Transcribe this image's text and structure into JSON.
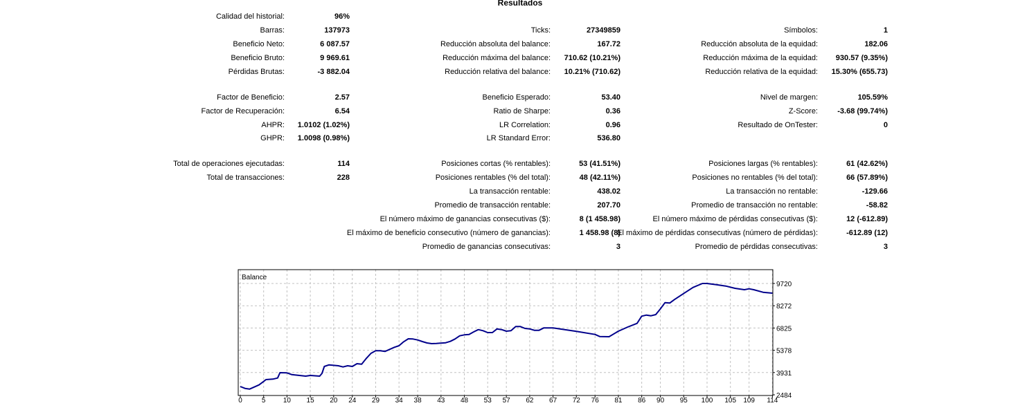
{
  "title": "Resultados",
  "rows": [
    [
      {
        "label": "Calidad del historial:",
        "value": "96%"
      },
      null,
      null
    ],
    [
      {
        "label": "Barras:",
        "value": "137973"
      },
      {
        "label": "Ticks:",
        "value": "27349859"
      },
      {
        "label": "Símbolos:",
        "value": "1"
      }
    ],
    [
      {
        "label": "Beneficio Neto:",
        "value": "6 087.57"
      },
      {
        "label": "Reducción absoluta del balance:",
        "value": "167.72"
      },
      {
        "label": "Reducción absoluta de la equidad:",
        "value": "182.06"
      }
    ],
    [
      {
        "label": "Beneficio Bruto:",
        "value": "9 969.61"
      },
      {
        "label": "Reducción máxima del balance:",
        "value": "710.62 (10.21%)"
      },
      {
        "label": "Reducción máxima de la equidad:",
        "value": "930.57 (9.35%)"
      }
    ],
    [
      {
        "label": "Pérdidas Brutas:",
        "value": "-3 882.04"
      },
      {
        "label": "Reducción relativa del balance:",
        "value": "10.21% (710.62)"
      },
      {
        "label": "Reducción relativa de la equidad:",
        "value": "15.30% (655.73)"
      }
    ],
    [
      {
        "label": "Factor de Beneficio:",
        "value": "2.57"
      },
      {
        "label": "Beneficio Esperado:",
        "value": "53.40"
      },
      {
        "label": "Nivel de margen:",
        "value": "105.59%"
      }
    ],
    [
      {
        "label": "Factor de Recuperación:",
        "value": "6.54"
      },
      {
        "label": "Ratio de Sharpe:",
        "value": "0.36"
      },
      {
        "label": "Z-Score:",
        "value": "-3.68 (99.74%)"
      }
    ],
    [
      {
        "label": "AHPR:",
        "value": "1.0102 (1.02%)"
      },
      {
        "label": "LR Correlation:",
        "value": "0.96"
      },
      {
        "label": "Resultado de OnTester:",
        "value": "0"
      }
    ],
    [
      {
        "label": "GHPR:",
        "value": "1.0098 (0.98%)"
      },
      {
        "label": "LR Standard Error:",
        "value": "536.80"
      },
      null
    ],
    [
      {
        "label": "Total de operaciones ejecutadas:",
        "value": "114"
      },
      {
        "label": "Posiciones cortas (% rentables):",
        "value": "53 (41.51%)"
      },
      {
        "label": "Posiciones largas (% rentables):",
        "value": "61 (42.62%)"
      }
    ],
    [
      {
        "label": "Total de transacciones:",
        "value": "228"
      },
      {
        "label": "Posiciones rentables (% del total):",
        "value": "48 (42.11%)"
      },
      {
        "label": "Posiciones no rentables (% del total):",
        "value": "66 (57.89%)"
      }
    ],
    [
      null,
      {
        "label": "La transacción rentable:",
        "value": "438.02"
      },
      {
        "label": "La transacción no rentable:",
        "value": "-129.66"
      }
    ],
    [
      null,
      {
        "label": "Promedio de transacción rentable:",
        "value": "207.70"
      },
      {
        "label": "Promedio de transacción no rentable:",
        "value": "-58.82"
      }
    ],
    [
      null,
      {
        "label": "El número máximo de ganancias consecutivas ($):",
        "value": "8 (1 458.98)"
      },
      {
        "label": "El número máximo de pérdidas consecutivas ($):",
        "value": "12 (-612.89)"
      }
    ],
    [
      null,
      {
        "label": "El máximo de beneficio consecutivo (número de ganancias):",
        "value": "1 458.98 (8)"
      },
      {
        "label": "El máximo de pérdidas consecutivas (número de pérdidas):",
        "value": "-612.89 (12)"
      }
    ],
    [
      null,
      {
        "label": "Promedio de ganancias consecutivas:",
        "value": "3"
      },
      {
        "label": "Promedio de pérdidas consecutivas:",
        "value": "3"
      }
    ]
  ],
  "chart_data": {
    "type": "line",
    "title": "Balance",
    "xlabel": "",
    "ylabel": "",
    "x_ticks": [
      0,
      5,
      10,
      15,
      20,
      24,
      29,
      34,
      38,
      43,
      48,
      53,
      57,
      62,
      67,
      72,
      76,
      81,
      86,
      90,
      95,
      100,
      105,
      109,
      114
    ],
    "y_ticks": [
      2484,
      3931,
      5378,
      6825,
      8272,
      9720
    ],
    "xlim": [
      0,
      114
    ],
    "ylim": [
      2484,
      10570
    ],
    "grid": true,
    "line_color": "#00008b",
    "series": [
      {
        "name": "Balance",
        "x": [
          0,
          1,
          2,
          4,
          5,
          5.5,
          7,
          8,
          8.5,
          10,
          11,
          13,
          14,
          15,
          17,
          17.5,
          18,
          19,
          21,
          22,
          23,
          24,
          25,
          26,
          27,
          28,
          29,
          30,
          31,
          33,
          34,
          35,
          36,
          37,
          38,
          39,
          40,
          41,
          42,
          44,
          45,
          46,
          47,
          48,
          49,
          50,
          51,
          52,
          53,
          54,
          55,
          56,
          57,
          58,
          59,
          60,
          61,
          62,
          63,
          64,
          65,
          66,
          67,
          72,
          76,
          77,
          79,
          81,
          83,
          85,
          86,
          87,
          88,
          89,
          90,
          91,
          92,
          93,
          95,
          97,
          99,
          100,
          102,
          104,
          106,
          108,
          109,
          110,
          112,
          114
        ],
        "y": [
          3023,
          2904,
          2859,
          3128,
          3353,
          3473,
          3503,
          3578,
          3922,
          3907,
          3802,
          3727,
          3697,
          3742,
          3697,
          3877,
          4327,
          4431,
          4372,
          4297,
          4372,
          4327,
          4506,
          4476,
          4851,
          5180,
          5345,
          5345,
          5300,
          5570,
          5675,
          5930,
          6124,
          6109,
          6049,
          5945,
          5855,
          5810,
          5825,
          5870,
          5960,
          6109,
          6319,
          6379,
          6409,
          6574,
          6724,
          6649,
          6529,
          6529,
          6768,
          6724,
          6619,
          6649,
          6918,
          6918,
          6798,
          6768,
          6678,
          6678,
          6828,
          6828,
          6828,
          6604,
          6409,
          6274,
          6259,
          6619,
          6888,
          7128,
          7592,
          7667,
          7622,
          7697,
          8072,
          8476,
          8446,
          8671,
          9075,
          9464,
          9719,
          9719,
          9644,
          9555,
          9405,
          9315,
          9375,
          9315,
          9150,
          9090
        ]
      }
    ]
  }
}
